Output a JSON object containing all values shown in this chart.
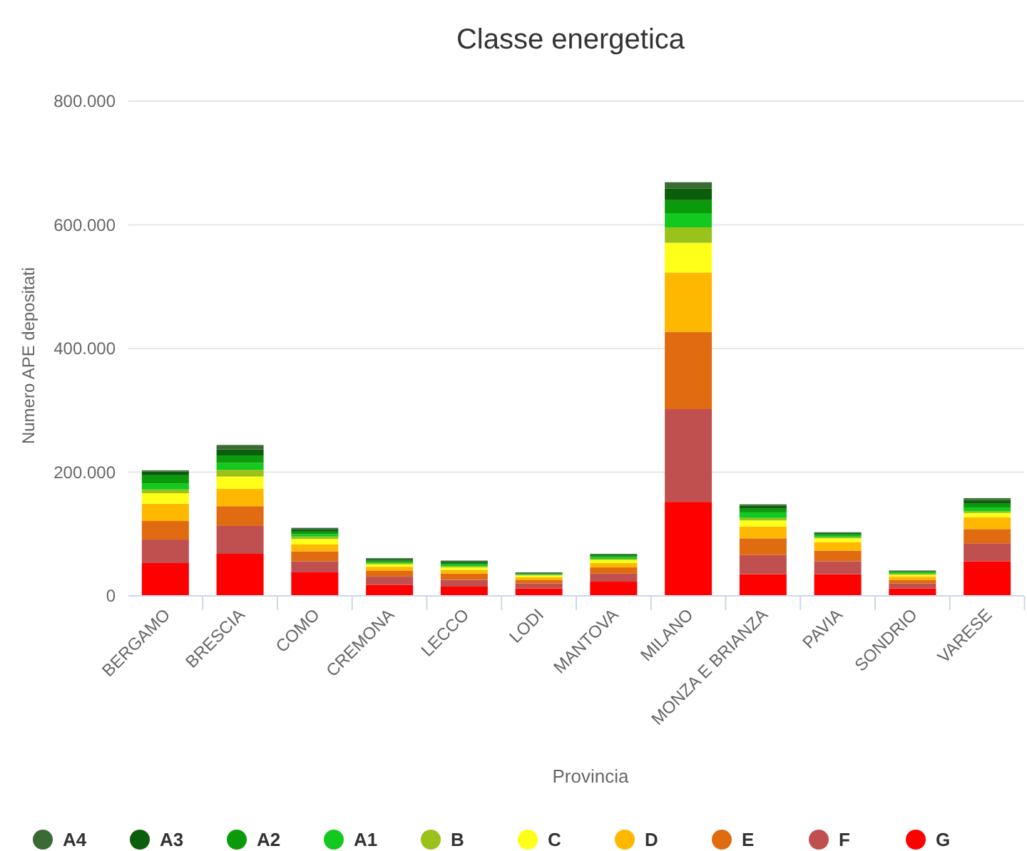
{
  "chart_data": {
    "type": "bar",
    "title": "Classe energetica",
    "xlabel": "Provincia",
    "ylabel": "Numero APE depositati",
    "categories": [
      "BERGAMO",
      "BRESCIA",
      "COMO",
      "CREMONA",
      "LECCO",
      "LODI",
      "MANTOVA",
      "MILANO",
      "MONZA E BRIANZA",
      "PAVIA",
      "SONDRIO",
      "VARESE"
    ],
    "stacked": true,
    "series": [
      {
        "name": "G",
        "color": "#ff0000",
        "values": [
          53000,
          68000,
          38000,
          18000,
          15000,
          12000,
          23000,
          152000,
          35000,
          35000,
          12000,
          56000
        ]
      },
      {
        "name": "F",
        "color": "#c05050",
        "values": [
          38000,
          45000,
          18000,
          13000,
          11000,
          8000,
          13000,
          150000,
          31000,
          21000,
          8000,
          29000
        ]
      },
      {
        "name": "E",
        "color": "#e06b10",
        "values": [
          30000,
          32000,
          16000,
          10000,
          10000,
          6000,
          10000,
          125000,
          27000,
          17000,
          6000,
          23000
        ]
      },
      {
        "name": "D",
        "color": "#ffb800",
        "values": [
          28000,
          28000,
          11000,
          6000,
          6000,
          4000,
          7000,
          96000,
          19000,
          14000,
          5000,
          19000
        ]
      },
      {
        "name": "C",
        "color": "#ffff1a",
        "values": [
          17000,
          20000,
          9000,
          4000,
          4000,
          3000,
          5000,
          48000,
          10000,
          6000,
          3000,
          7000
        ]
      },
      {
        "name": "B",
        "color": "#99c31a",
        "values": [
          6000,
          11000,
          4000,
          2000,
          2000,
          1000,
          2000,
          25000,
          4000,
          2000,
          2000,
          3000
        ]
      },
      {
        "name": "A1",
        "color": "#13c81f",
        "values": [
          10000,
          11000,
          4000,
          2000,
          3000,
          1000,
          3000,
          23000,
          9000,
          3000,
          2000,
          6000
        ]
      },
      {
        "name": "A2",
        "color": "#0a9a0a",
        "values": [
          13000,
          12000,
          4000,
          2000,
          2000,
          1000,
          3000,
          21000,
          6000,
          2000,
          1000,
          6000
        ]
      },
      {
        "name": "A3",
        "color": "#0b5e0b",
        "values": [
          6000,
          10000,
          4000,
          2000,
          2000,
          1000,
          1000,
          19000,
          5000,
          2000,
          1000,
          6000
        ]
      },
      {
        "name": "A4",
        "color": "#3a6b35",
        "values": [
          2000,
          7000,
          2000,
          2000,
          2000,
          1000,
          1000,
          10000,
          2000,
          1000,
          1000,
          3000
        ]
      }
    ],
    "ylim": [
      0,
      800000
    ],
    "yticks": [
      0,
      {
        "value": 200000,
        "label": "200.000"
      },
      {
        "value": 400000,
        "label": "400.000"
      },
      {
        "value": 600000,
        "label": "600.000"
      },
      {
        "value": 800000,
        "label": "800.000"
      }
    ],
    "grid": "y",
    "legend": "bottom"
  }
}
